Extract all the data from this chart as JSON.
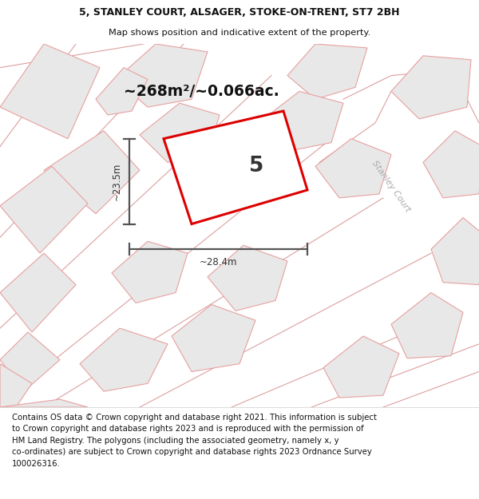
{
  "title_line1": "5, STANLEY COURT, ALSAGER, STOKE-ON-TRENT, ST7 2BH",
  "title_line2": "Map shows position and indicative extent of the property.",
  "area_label": "~268m²/~0.066ac.",
  "property_number": "5",
  "dim_width": "~28.4m",
  "dim_height": "~23.5m",
  "street_label": "Stanley Court",
  "footer_lines": [
    "Contains OS data © Crown copyright and database right 2021. This information is subject",
    "to Crown copyright and database rights 2023 and is reproduced with the permission of",
    "HM Land Registry. The polygons (including the associated geometry, namely x, y",
    "co-ordinates) are subject to Crown copyright and database rights 2023 Ordnance Survey",
    "100026316."
  ],
  "map_bg": "#f2f2f2",
  "main_poly_color": "#dd0000",
  "main_poly_fill": "#ffffff",
  "bg_poly_color": "#e8a0a0",
  "bg_poly_fill": "#e8e8e8",
  "road_color": "#dca0a0",
  "dim_color": "#555555",
  "street_label_color": "#aaaaaa",
  "title_color": "#111111",
  "number_color": "#333333"
}
